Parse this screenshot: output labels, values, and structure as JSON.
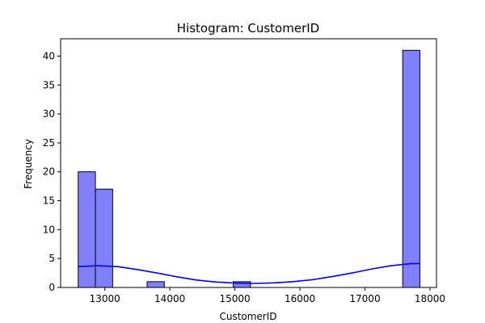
{
  "chart_data": {
    "type": "bar",
    "title": "Histogram: CustomerID",
    "xlabel": "CustomerID",
    "ylabel": "Frequency",
    "xlim": [
      12320,
      18100
    ],
    "ylim": [
      0,
      43
    ],
    "x_ticks": [
      13000,
      14000,
      15000,
      16000,
      17000,
      18000
    ],
    "y_ticks": [
      0,
      5,
      10,
      15,
      20,
      25,
      30,
      35,
      40
    ],
    "bins": [
      {
        "x0": 12590,
        "x1": 12855,
        "count": 20
      },
      {
        "x0": 12855,
        "x1": 13120,
        "count": 17
      },
      {
        "x0": 13650,
        "x1": 13915,
        "count": 1
      },
      {
        "x0": 14975,
        "x1": 15240,
        "count": 1
      },
      {
        "x0": 17580,
        "x1": 17845,
        "count": 41
      }
    ],
    "kde": {
      "x": [
        12590,
        12900,
        13200,
        13500,
        13800,
        14100,
        14400,
        14700,
        15000,
        15300,
        15600,
        15900,
        16200,
        16500,
        16800,
        17100,
        17400,
        17700,
        17845
      ],
      "y": [
        3.6,
        3.75,
        3.6,
        3.1,
        2.5,
        1.85,
        1.3,
        0.95,
        0.75,
        0.7,
        0.8,
        1.0,
        1.35,
        1.9,
        2.5,
        3.2,
        3.75,
        4.1,
        4.15
      ]
    },
    "colors": {
      "bar_fill": "#8080ff",
      "bar_edge": "#000000",
      "kde_line": "#0000ee"
    }
  }
}
